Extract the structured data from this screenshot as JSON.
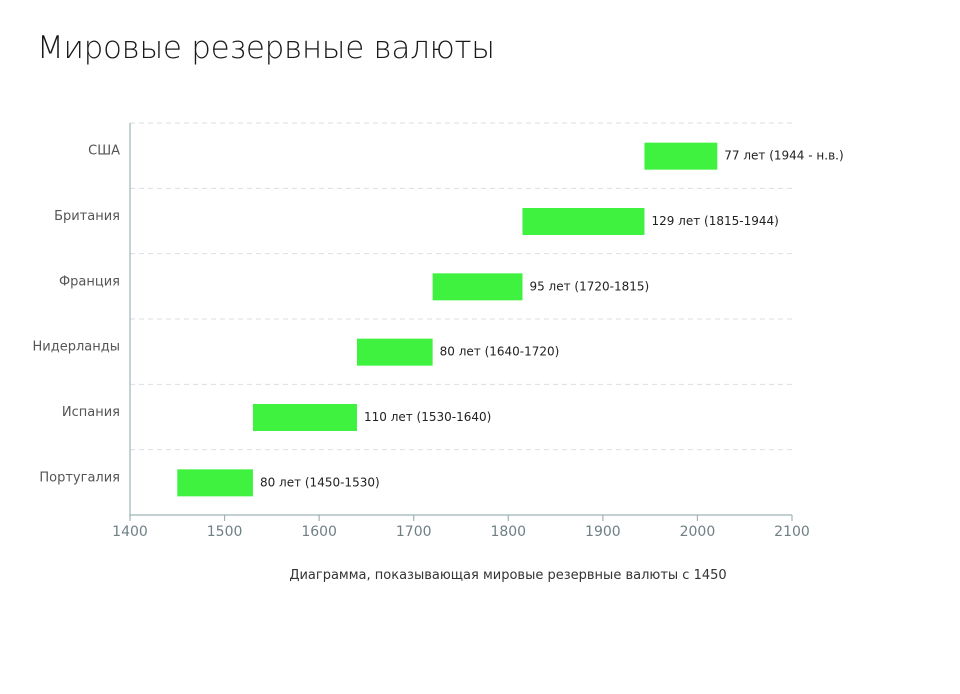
{
  "chart_data": {
    "type": "bar",
    "orientation": "horizontal-range",
    "title": "Мировые резервные валюты",
    "caption": "Диаграмма, показывающая мировые резервные валюты с 1450",
    "categories": [
      "США",
      "Британия",
      "Франция",
      "Нидерланды",
      "Испания",
      "Португалия"
    ],
    "ranges": [
      {
        "start": 1944,
        "end": 2021,
        "label": "77 лет (1944 - н.в.)"
      },
      {
        "start": 1815,
        "end": 1944,
        "label": "129 лет (1815-1944)"
      },
      {
        "start": 1720,
        "end": 1815,
        "label": "95 лет (1720-1815)"
      },
      {
        "start": 1640,
        "end": 1720,
        "label": "80 лет (1640-1720)"
      },
      {
        "start": 1530,
        "end": 1640,
        "label": "110 лет (1530-1640)"
      },
      {
        "start": 1450,
        "end": 1530,
        "label": "80 лет (1450-1530)"
      }
    ],
    "xlim": [
      1400,
      2100
    ],
    "xticks": [
      "1400",
      "1500",
      "1600",
      "1700",
      "1800",
      "1900",
      "2000",
      "2100"
    ],
    "bar_color": "#3ef23f",
    "grid": "horizontal dashed",
    "legend": "none"
  }
}
